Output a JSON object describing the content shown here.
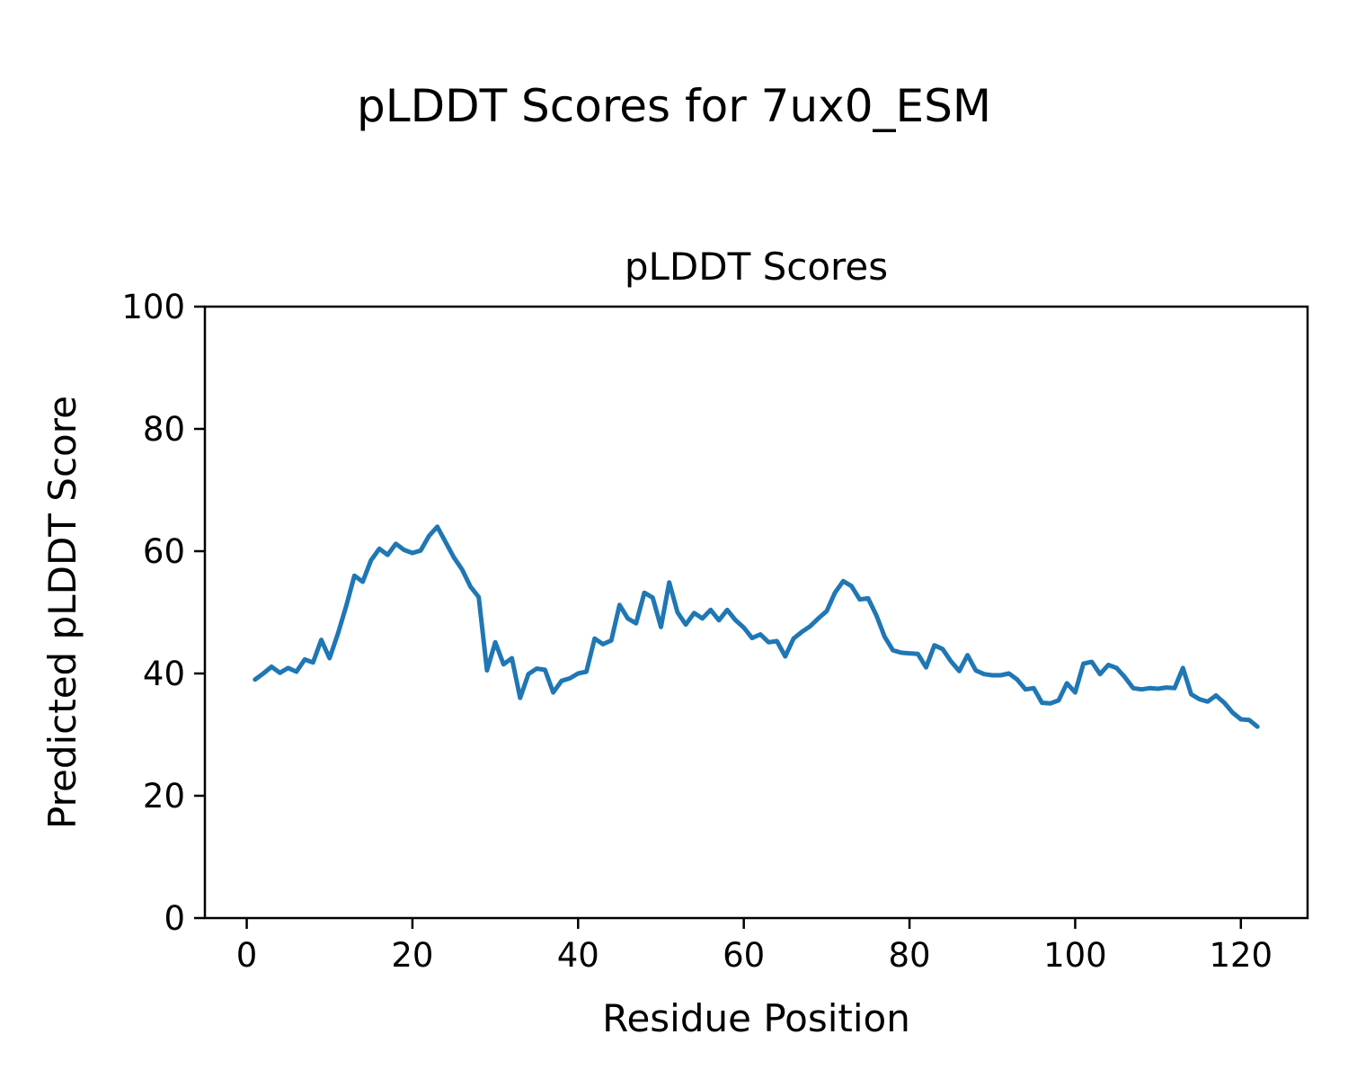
{
  "figure": {
    "suptitle": "pLDDT Scores for 7ux0_ESM",
    "background_color": "#ffffff",
    "text_color": "#000000"
  },
  "chart_data": {
    "type": "line",
    "title": "pLDDT Scores",
    "xlabel": "Residue Position",
    "ylabel": "Predicted pLDDT Score",
    "legend": "none",
    "grid": false,
    "line_color": "#1f77b4",
    "line_width": 5,
    "xlim": [
      -5.05,
      128.05
    ],
    "ylim": [
      0,
      100
    ],
    "xticks": [
      0,
      20,
      40,
      60,
      80,
      100,
      120
    ],
    "yticks": [
      0,
      20,
      40,
      60,
      80,
      100
    ],
    "series_name": "pLDDT score per residue",
    "x": [
      1,
      2,
      3,
      4,
      5,
      6,
      7,
      8,
      9,
      10,
      11,
      12,
      13,
      14,
      15,
      16,
      17,
      18,
      19,
      20,
      21,
      22,
      23,
      24,
      25,
      26,
      27,
      28,
      29,
      30,
      31,
      32,
      33,
      34,
      35,
      36,
      37,
      38,
      39,
      40,
      41,
      42,
      43,
      44,
      45,
      46,
      47,
      48,
      49,
      50,
      51,
      52,
      53,
      54,
      55,
      56,
      57,
      58,
      59,
      60,
      61,
      62,
      63,
      64,
      65,
      66,
      67,
      68,
      69,
      70,
      71,
      72,
      73,
      74,
      75,
      76,
      77,
      78,
      79,
      80,
      81,
      82,
      83,
      84,
      85,
      86,
      87,
      88,
      89,
      90,
      91,
      92,
      93,
      94,
      95,
      96,
      97,
      98,
      99,
      100,
      101,
      102,
      103,
      104,
      105,
      106,
      107,
      108,
      109,
      110,
      111,
      112,
      113,
      114,
      115,
      116,
      117,
      118,
      119,
      120,
      121,
      122
    ],
    "values": [
      39.0,
      40.0,
      41.1,
      40.1,
      40.9,
      40.3,
      42.3,
      41.8,
      45.5,
      42.5,
      46.5,
      51.0,
      56.0,
      55.0,
      58.5,
      60.4,
      59.4,
      61.2,
      60.2,
      59.7,
      60.1,
      62.5,
      64.0,
      61.5,
      59.0,
      57.0,
      54.2,
      52.5,
      40.5,
      45.1,
      41.5,
      42.5,
      36.0,
      39.9,
      40.8,
      40.6,
      36.9,
      38.8,
      39.2,
      40.0,
      40.3,
      45.7,
      44.8,
      45.4,
      51.2,
      49.0,
      48.2,
      53.2,
      52.4,
      47.6,
      54.9,
      50.0,
      48.0,
      49.9,
      49.0,
      50.4,
      48.7,
      50.4,
      48.7,
      47.5,
      45.8,
      46.4,
      45.1,
      45.3,
      42.8,
      45.7,
      46.8,
      47.7,
      49.0,
      50.2,
      53.2,
      55.1,
      54.3,
      52.1,
      52.3,
      49.5,
      46.0,
      43.8,
      43.4,
      43.3,
      43.2,
      41.0,
      44.6,
      44.0,
      42.0,
      40.4,
      43.0,
      40.5,
      39.9,
      39.7,
      39.7,
      40.0,
      39.0,
      37.4,
      37.6,
      35.2,
      35.1,
      35.6,
      38.4,
      36.9,
      41.6,
      41.9,
      39.9,
      41.4,
      40.9,
      39.4,
      37.6,
      37.4,
      37.6,
      37.5,
      37.7,
      37.6,
      40.9,
      36.6,
      35.8,
      35.4,
      36.4,
      35.2,
      33.6,
      32.5,
      32.4,
      31.3
    ]
  }
}
